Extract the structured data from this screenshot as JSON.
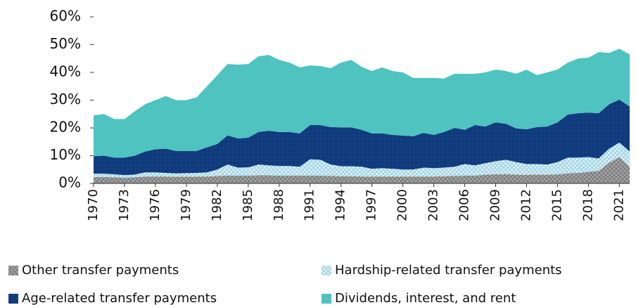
{
  "chart_data": {
    "type": "stacked-area",
    "x": [
      1970,
      1971,
      1972,
      1973,
      1974,
      1975,
      1976,
      1977,
      1978,
      1979,
      1980,
      1981,
      1982,
      1983,
      1984,
      1985,
      1986,
      1987,
      1988,
      1989,
      1990,
      1991,
      1992,
      1993,
      1994,
      1995,
      1996,
      1997,
      1998,
      1999,
      2000,
      2001,
      2002,
      2003,
      2004,
      2005,
      2006,
      2007,
      2008,
      2009,
      2010,
      2011,
      2012,
      2013,
      2014,
      2015,
      2016,
      2017,
      2018,
      2019,
      2020,
      2021,
      2022
    ],
    "xlim": [
      1970,
      2022
    ],
    "xticks": [
      1970,
      1973,
      1976,
      1979,
      1982,
      1985,
      1988,
      1991,
      1994,
      1997,
      2000,
      2003,
      2006,
      2009,
      2012,
      2015,
      2018,
      2021
    ],
    "ylim": [
      0,
      60
    ],
    "yticks": [
      {
        "value": 0,
        "label": "0%"
      },
      {
        "value": 10,
        "label": "10%"
      },
      {
        "value": 20,
        "label": "20%"
      },
      {
        "value": 30,
        "label": "30%"
      },
      {
        "value": 40,
        "label": "40%"
      },
      {
        "value": 50,
        "label": "50%"
      },
      {
        "value": 60,
        "label": "60%"
      }
    ],
    "series": [
      {
        "name": "Other transfer payments",
        "color": "#a3a3a3",
        "values": [
          2.3,
          2.3,
          2.2,
          2.0,
          2.2,
          2.5,
          2.5,
          2.5,
          2.4,
          2.4,
          2.5,
          2.5,
          2.7,
          2.8,
          2.8,
          2.8,
          2.9,
          2.9,
          2.8,
          2.8,
          2.8,
          2.8,
          2.8,
          2.7,
          2.6,
          2.6,
          2.5,
          2.5,
          2.5,
          2.5,
          2.5,
          2.5,
          2.5,
          2.5,
          2.6,
          2.7,
          2.8,
          2.8,
          3.2,
          3.3,
          3.4,
          3.2,
          3.1,
          3.2,
          3.2,
          3.3,
          3.6,
          3.8,
          4.2,
          4.5,
          7.5,
          9.5,
          6.0
        ]
      },
      {
        "name": "Hardship-related transfer payments",
        "color": "#a8d8ea",
        "values": [
          1.2,
          1.2,
          1.1,
          1.0,
          1.0,
          1.5,
          1.5,
          1.3,
          1.2,
          1.3,
          1.3,
          1.5,
          2.3,
          4.0,
          2.9,
          3.0,
          3.9,
          3.6,
          3.5,
          3.5,
          3.2,
          5.9,
          5.7,
          4.1,
          3.6,
          3.6,
          3.5,
          2.8,
          3.0,
          2.8,
          2.5,
          2.5,
          3.2,
          3.0,
          3.1,
          3.3,
          4.2,
          3.7,
          4.1,
          4.7,
          5.1,
          4.5,
          3.9,
          3.8,
          3.6,
          4.4,
          5.7,
          5.5,
          5.3,
          4.5,
          5.0,
          5.2,
          5.5
        ]
      },
      {
        "name": "Age-related transfer payments",
        "color": "#0e3a7c",
        "values": [
          6.3,
          6.5,
          6.0,
          6.3,
          6.8,
          7.5,
          8.3,
          8.7,
          8.1,
          8.0,
          7.9,
          9.0,
          9.2,
          10.5,
          10.5,
          10.7,
          11.7,
          12.5,
          12.2,
          12.2,
          12.0,
          12.3,
          12.5,
          13.5,
          14.0,
          14.0,
          13.3,
          12.7,
          12.5,
          12.2,
          12.2,
          12.0,
          12.5,
          12.0,
          12.8,
          14.0,
          12.3,
          14.5,
          13.2,
          14.0,
          13.0,
          12.1,
          12.5,
          13.3,
          13.7,
          14.3,
          15.5,
          16.0,
          16.0,
          16.3,
          16.0,
          15.5,
          16.2
        ]
      },
      {
        "name": "Dividends, interest, and rent",
        "color": "#4ec3c0",
        "values": [
          14.7,
          15.0,
          13.9,
          13.9,
          16.0,
          17.0,
          17.7,
          19.0,
          18.3,
          18.3,
          19.3,
          22.0,
          24.8,
          25.7,
          26.6,
          26.5,
          27.3,
          27.3,
          26.0,
          25.0,
          23.8,
          21.5,
          21.3,
          21.2,
          23.3,
          24.3,
          22.7,
          22.5,
          23.8,
          23.0,
          22.8,
          21.0,
          19.8,
          20.5,
          19.3,
          19.5,
          20.2,
          18.5,
          19.5,
          19.0,
          19.0,
          19.7,
          21.5,
          18.7,
          19.5,
          19.0,
          18.7,
          19.7,
          19.8,
          22.0,
          18.5,
          18.3,
          18.8
        ]
      }
    ]
  }
}
